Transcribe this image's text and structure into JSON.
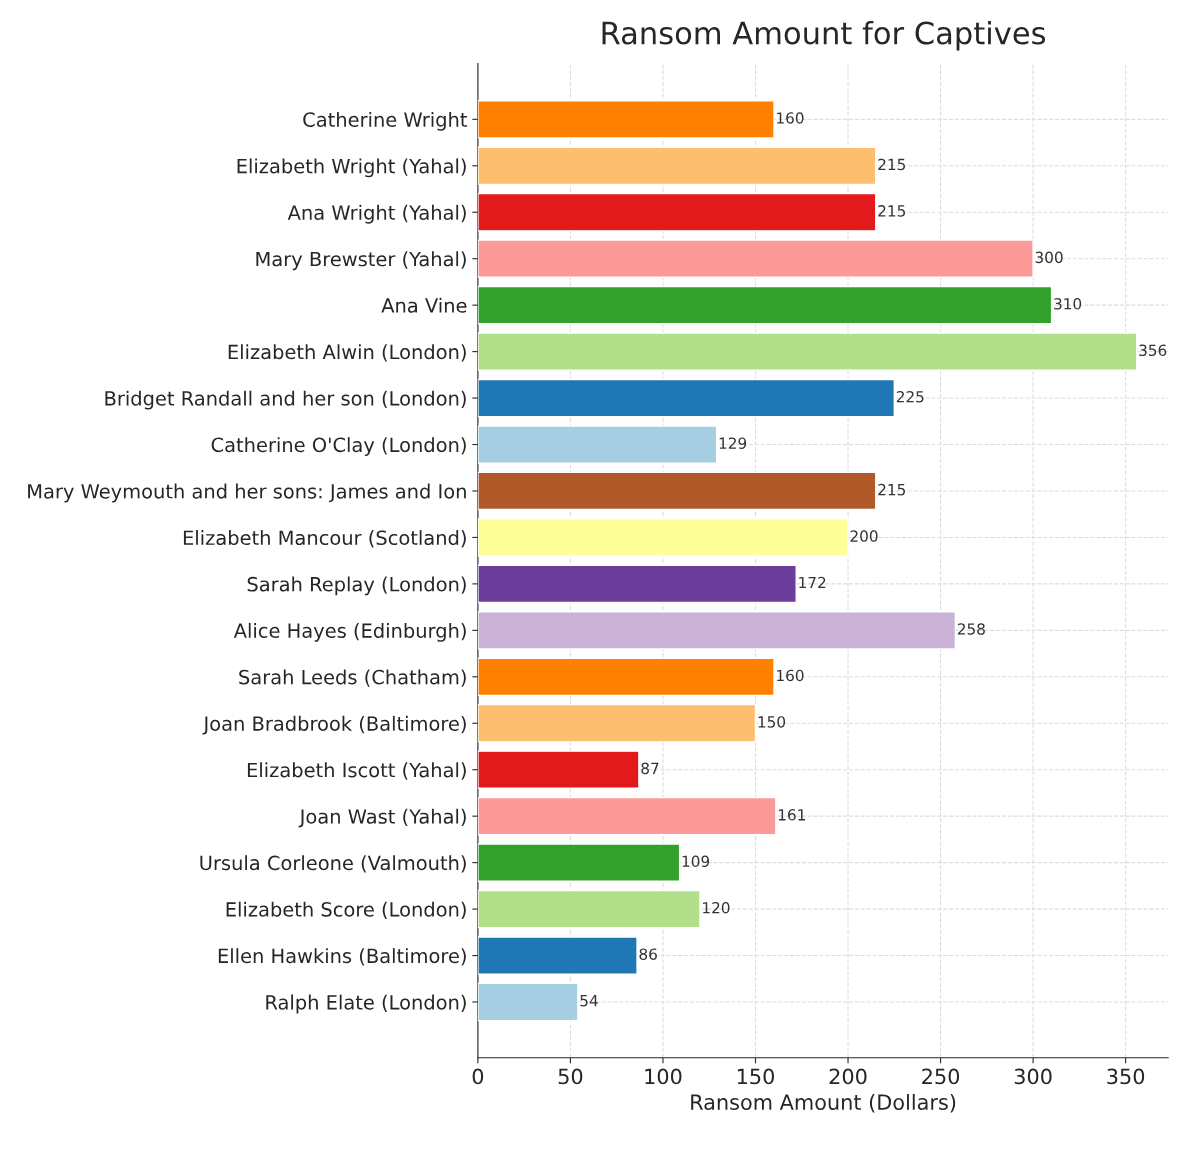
{
  "chart_data": {
    "type": "bar",
    "orientation": "horizontal",
    "title": "Ransom Amount for Captives",
    "xlabel": "Ransom Amount (Dollars)",
    "categories": [
      "Catherine Wright",
      "Elizabeth Wright (Yahal)",
      "Ana Wright (Yahal)",
      "Mary Brewster (Yahal)",
      "Ana Vine",
      "Elizabeth Alwin (London)",
      "Bridget Randall and her son (London)",
      "Catherine O'Clay (London)",
      "Mary Weymouth and her sons: James and Ion",
      "Elizabeth Mancour (Scotland)",
      "Sarah Replay (London)",
      "Alice Hayes (Edinburgh)",
      "Sarah Leeds (Chatham)",
      "Joan Bradbrook (Baltimore)",
      "Elizabeth Iscott (Yahal)",
      "Joan Wast (Yahal)",
      "Ursula Corleone (Valmouth)",
      "Elizabeth Score (London)",
      "Ellen Hawkins (Baltimore)",
      "Ralph Elate (London)"
    ],
    "values": [
      160,
      215,
      215,
      300,
      310,
      356,
      225,
      129,
      215,
      200,
      172,
      258,
      160,
      150,
      87,
      161,
      109,
      120,
      86,
      54
    ],
    "colors": [
      "#ff7f00",
      "#fdbf6f",
      "#e31a1c",
      "#fb9a99",
      "#33a02c",
      "#b2df8a",
      "#1f78b4",
      "#a6cee3",
      "#b15928",
      "#ffff99",
      "#6a3d9a",
      "#cab2d6",
      "#ff7f00",
      "#fdbf6f",
      "#e31a1c",
      "#fb9a99",
      "#33a02c",
      "#b2df8a",
      "#1f78b4",
      "#a6cee3"
    ],
    "xlim": [
      0,
      373
    ],
    "xticks": [
      0,
      50,
      100,
      150,
      200,
      250,
      300,
      350
    ],
    "grid": true,
    "data_labels": true
  }
}
